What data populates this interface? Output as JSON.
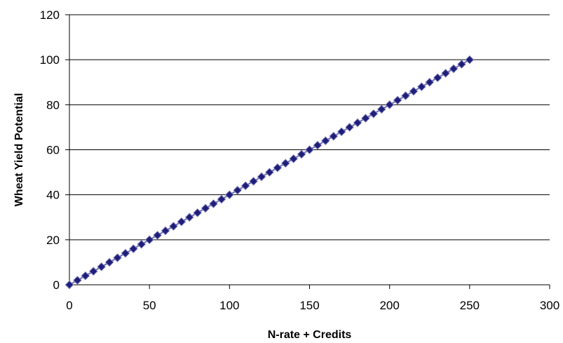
{
  "chart_data": {
    "type": "scatter",
    "title": "",
    "xlabel": "N-rate + Credits",
    "ylabel": "Wheat Yield Potential",
    "xlim": [
      0,
      300
    ],
    "ylim": [
      0,
      120
    ],
    "xticks": [
      0,
      50,
      100,
      150,
      200,
      250,
      300
    ],
    "yticks": [
      0,
      20,
      40,
      60,
      80,
      100,
      120
    ],
    "grid": "horizontal",
    "legend": "none",
    "colors": {
      "marker": "#1f1f7a",
      "line": "#6f6fb4",
      "grid": "#000000"
    },
    "series": [
      {
        "marker": "diamond",
        "connected": true,
        "x": [
          0,
          5,
          10,
          15,
          20,
          25,
          30,
          35,
          40,
          45,
          50,
          55,
          60,
          65,
          70,
          75,
          80,
          85,
          90,
          95,
          100,
          105,
          110,
          115,
          120,
          125,
          130,
          135,
          140,
          145,
          150,
          155,
          160,
          165,
          170,
          175,
          180,
          185,
          190,
          195,
          200,
          205,
          210,
          215,
          220,
          225,
          230,
          235,
          240,
          245,
          250
        ],
        "y": [
          0,
          2,
          4,
          6,
          8,
          10,
          12,
          14,
          16,
          18,
          20,
          22,
          24,
          26,
          28,
          30,
          32,
          34,
          36,
          38,
          40,
          42,
          44,
          46,
          48,
          50,
          52,
          54,
          56,
          58,
          60,
          62,
          64,
          66,
          68,
          70,
          72,
          74,
          76,
          78,
          80,
          82,
          84,
          86,
          88,
          90,
          92,
          94,
          96,
          98,
          100
        ]
      }
    ]
  }
}
